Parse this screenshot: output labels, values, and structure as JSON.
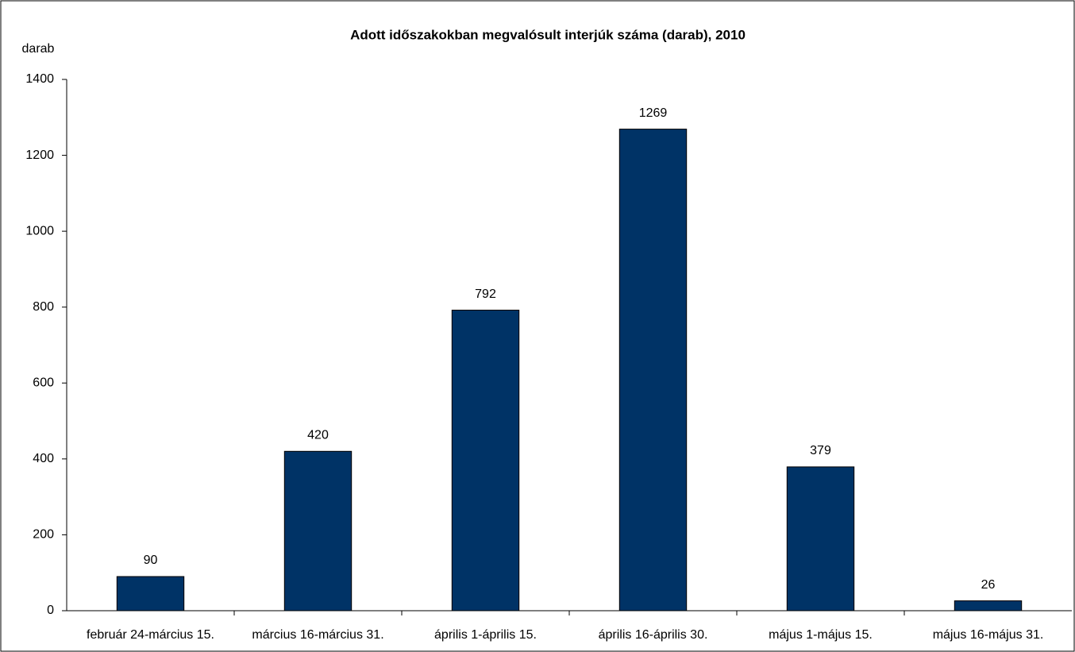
{
  "chart_data": {
    "type": "bar",
    "title": "Adott időszakokban megvalósult interjúk száma (darab), 2010",
    "y_label": "darab",
    "categories": [
      "február 24-március 15.",
      "március 16-március 31.",
      "április 1-április 15.",
      "április 16-április 30.",
      "május 1-május 15.",
      "május 16-május 31."
    ],
    "values": [
      90,
      420,
      792,
      1269,
      379,
      26
    ],
    "color": "#003366",
    "ylim": [
      0,
      1400
    ],
    "yticks": [
      0,
      200,
      400,
      600,
      800,
      1000,
      1200,
      1400
    ],
    "grid": false,
    "data_labels": true
  }
}
